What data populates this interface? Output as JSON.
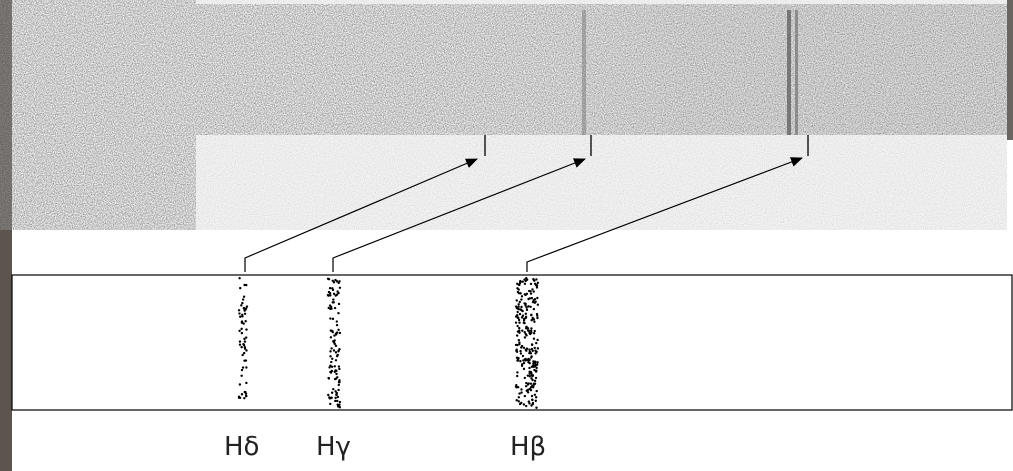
{
  "labels": [
    "Hδ",
    "Hγ",
    "Hβ"
  ]
}
